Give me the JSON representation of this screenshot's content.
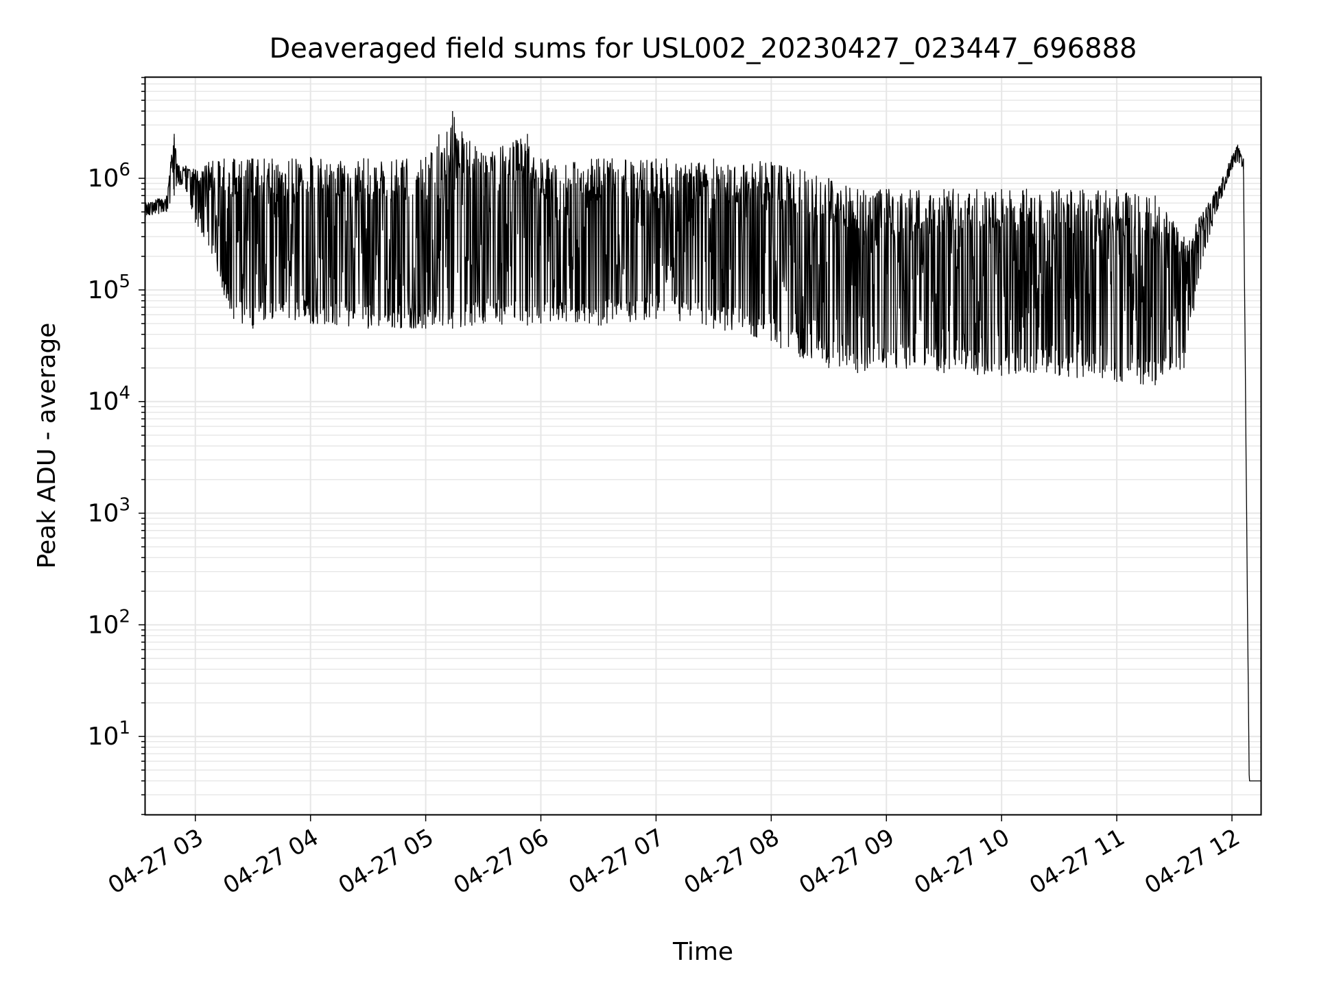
{
  "chart_data": {
    "type": "line",
    "title": "Deaveraged field sums for USL002_20230427_023447_696888",
    "xlabel": "Time",
    "ylabel": "Peak ADU - average",
    "yscale": "log",
    "xlim": [
      "2023-04-27 02:34",
      "2023-04-27 12:15"
    ],
    "ylim": [
      2,
      8000000
    ],
    "grid": true,
    "x_ticks": [
      {
        "value": "2023-04-27 03:00",
        "label": "04-27 03"
      },
      {
        "value": "2023-04-27 04:00",
        "label": "04-27 04"
      },
      {
        "value": "2023-04-27 05:00",
        "label": "04-27 05"
      },
      {
        "value": "2023-04-27 06:00",
        "label": "04-27 06"
      },
      {
        "value": "2023-04-27 07:00",
        "label": "04-27 07"
      },
      {
        "value": "2023-04-27 08:00",
        "label": "04-27 08"
      },
      {
        "value": "2023-04-27 09:00",
        "label": "04-27 09"
      },
      {
        "value": "2023-04-27 10:00",
        "label": "04-27 10"
      },
      {
        "value": "2023-04-27 11:00",
        "label": "04-27 11"
      },
      {
        "value": "2023-04-27 12:00",
        "label": "04-27 12"
      }
    ],
    "y_ticks": [
      {
        "value": 10,
        "base": "10",
        "exp": "1"
      },
      {
        "value": 100,
        "base": "10",
        "exp": "2"
      },
      {
        "value": 1000,
        "base": "10",
        "exp": "3"
      },
      {
        "value": 10000,
        "base": "10",
        "exp": "4"
      },
      {
        "value": 100000,
        "base": "10",
        "exp": "5"
      },
      {
        "value": 1000000,
        "base": "10",
        "exp": "6"
      }
    ],
    "series": [
      {
        "color": "#000000",
        "x": [
          "2023-04-27 02:34",
          "2023-04-27 02:45",
          "2023-04-27 02:49",
          "2023-04-27 02:51",
          "2023-04-27 02:55",
          "2023-04-27 03:00",
          "2023-04-27 03:07",
          "2023-04-27 03:15",
          "2023-04-27 03:20",
          "2023-04-27 03:30",
          "2023-04-27 03:40",
          "2023-04-27 04:00",
          "2023-04-27 04:30",
          "2023-04-27 05:00",
          "2023-04-27 05:14",
          "2023-04-27 05:30",
          "2023-04-27 05:53",
          "2023-04-27 06:00",
          "2023-04-27 06:30",
          "2023-04-27 07:00",
          "2023-04-27 07:30",
          "2023-04-27 08:00",
          "2023-04-27 08:05",
          "2023-04-27 08:15",
          "2023-04-27 08:30",
          "2023-04-27 08:45",
          "2023-04-27 09:00",
          "2023-04-27 09:30",
          "2023-04-27 10:00",
          "2023-04-27 10:30",
          "2023-04-27 11:00",
          "2023-04-27 11:20",
          "2023-04-27 11:35",
          "2023-04-27 11:45",
          "2023-04-27 11:55",
          "2023-04-27 12:00",
          "2023-04-27 12:03",
          "2023-04-27 12:06",
          "2023-04-27 12:08",
          "2023-04-27 12:09",
          "2023-04-27 12:15"
        ],
        "y_max": [
          600000,
          700000,
          2500000,
          1300000,
          1300000,
          1200000,
          1400000,
          1500000,
          1500000,
          1500000,
          1500000,
          1550000,
          1500000,
          1550000,
          4000000,
          1600000,
          2500000,
          1500000,
          1500000,
          1500000,
          1500000,
          1400000,
          1300000,
          1200000,
          1000000,
          800000,
          800000,
          800000,
          800000,
          800000,
          800000,
          700000,
          300000,
          500000,
          1000000,
          1600000,
          2000000,
          1500000,
          200,
          4,
          4
        ],
        "y_min": [
          450000,
          500000,
          700000,
          900000,
          800000,
          400000,
          250000,
          90000,
          55000,
          45000,
          55000,
          50000,
          45000,
          45000,
          45000,
          50000,
          48000,
          50000,
          48000,
          55000,
          45000,
          35000,
          30000,
          25000,
          20000,
          18000,
          20000,
          18000,
          17000,
          17000,
          15000,
          14000,
          20000,
          200000,
          700000,
          1200000,
          1400000,
          1200000,
          200,
          4,
          4
        ]
      }
    ]
  }
}
